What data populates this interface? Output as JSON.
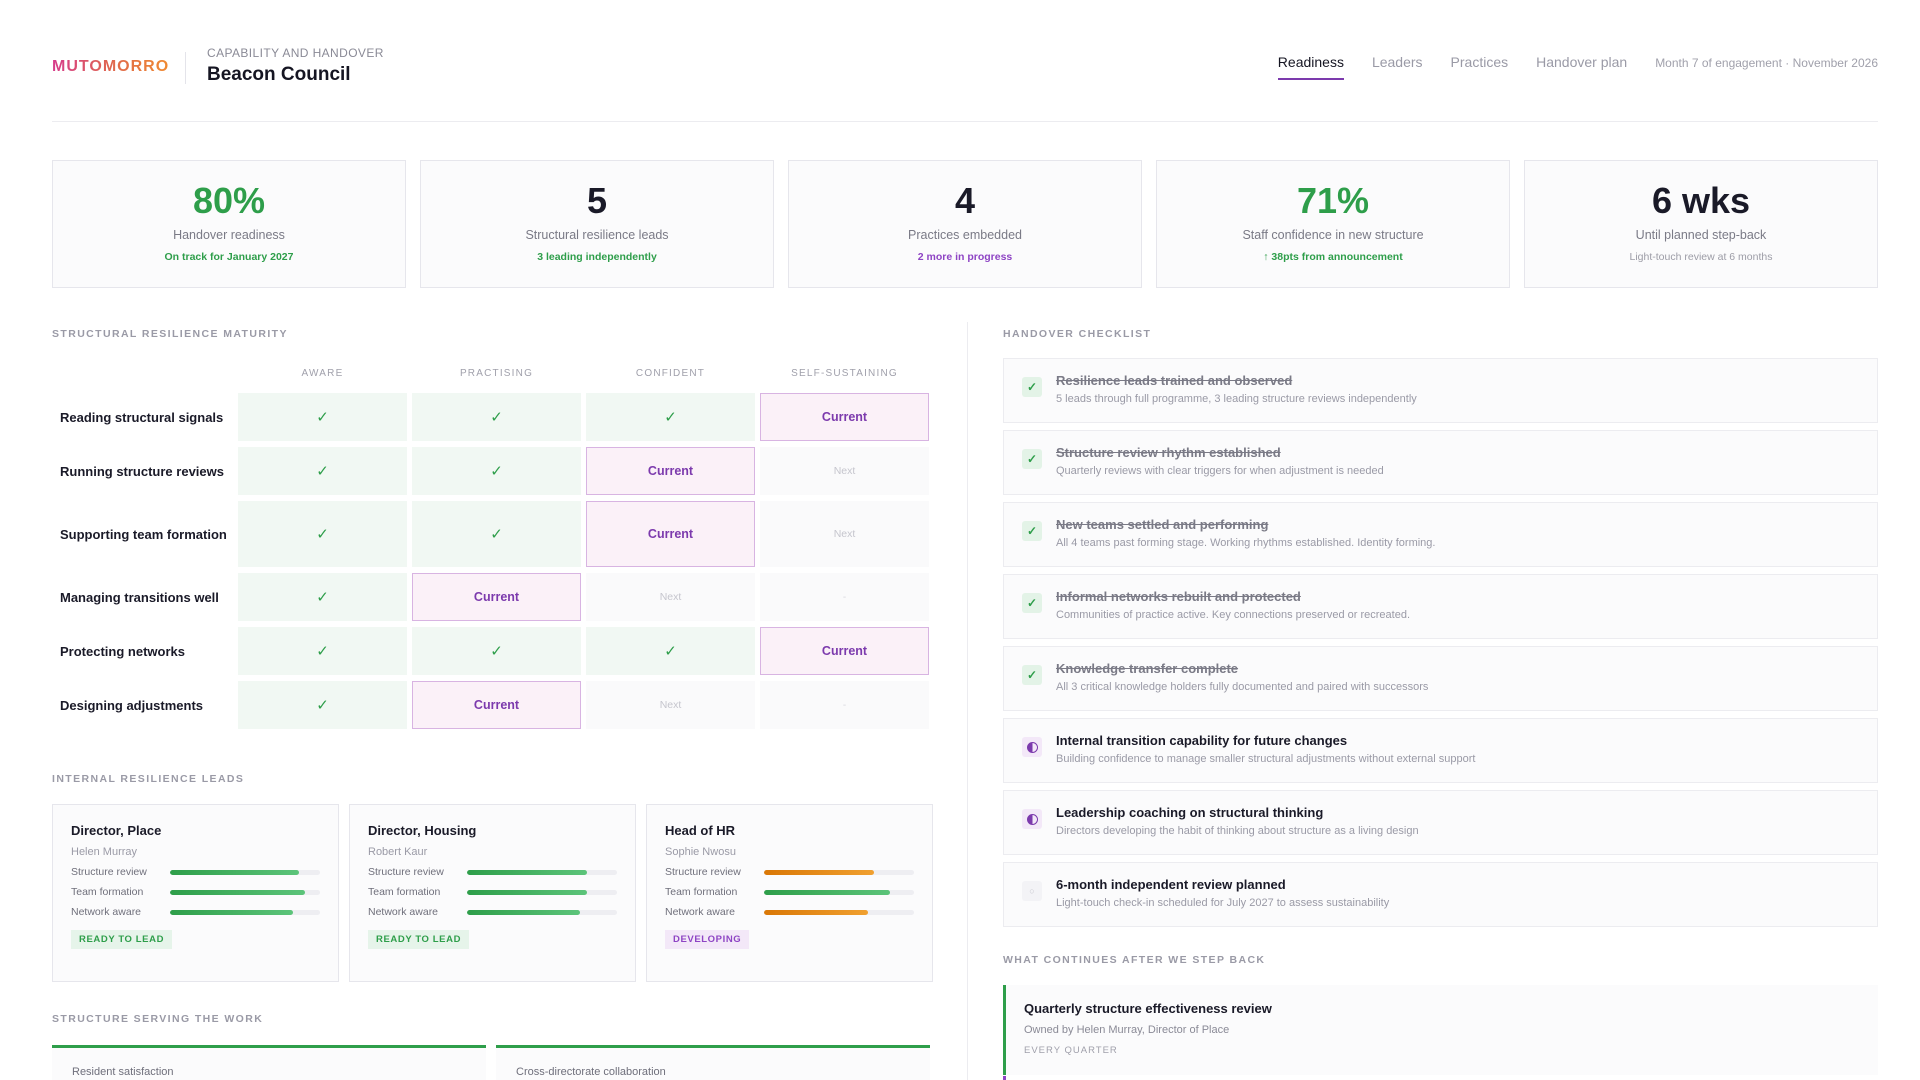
{
  "header": {
    "logo": "MUTOMORRO",
    "breadcrumb": "CAPABILITY AND HANDOVER",
    "title": "Beacon Council",
    "tabs": [
      {
        "label": "Readiness",
        "active": true
      },
      {
        "label": "Leaders",
        "active": false
      },
      {
        "label": "Practices",
        "active": false
      },
      {
        "label": "Handover plan",
        "active": false
      }
    ],
    "meta": "Month 7 of engagement · November 2026"
  },
  "kpis": [
    {
      "value": "80%",
      "label": "Handover readiness",
      "sub": "On track for January 2027",
      "tone": "green"
    },
    {
      "value": "5",
      "label": "Structural resilience leads",
      "sub": "3 leading independently",
      "tone": "green"
    },
    {
      "value": "4",
      "label": "Practices embedded",
      "sub": "2 more in progress",
      "tone": "purple"
    },
    {
      "value": "71%",
      "label": "Staff confidence in new structure",
      "sub": "↑ 38pts from announcement",
      "tone": "green"
    },
    {
      "value": "6 wks",
      "label": "Until planned step-back",
      "sub": "Light-touch review at 6 months",
      "tone": "gray"
    }
  ],
  "maturity": {
    "title": "STRUCTURAL RESILIENCE MATURITY",
    "columns": [
      "AWARE",
      "PRACTISING",
      "CONFIDENT",
      "SELF-SUSTAINING"
    ],
    "check_glyph": "✓",
    "current_label": "Current",
    "next_label": "Next",
    "empty_label": "-",
    "rows": [
      {
        "label": "Reading structural signals",
        "cells": [
          "done",
          "done",
          "done",
          "current"
        ]
      },
      {
        "label": "Running structure reviews",
        "cells": [
          "done",
          "done",
          "current",
          "next"
        ]
      },
      {
        "label": "Supporting team formation",
        "cells": [
          "done",
          "done",
          "current",
          "next"
        ]
      },
      {
        "label": "Managing transitions well",
        "cells": [
          "done",
          "current",
          "next",
          "empty"
        ]
      },
      {
        "label": "Protecting networks",
        "cells": [
          "done",
          "done",
          "done",
          "current"
        ]
      },
      {
        "label": "Designing adjustments",
        "cells": [
          "done",
          "current",
          "next",
          "empty"
        ]
      }
    ]
  },
  "leads": {
    "title": "INTERNAL RESILIENCE LEADS",
    "cards": [
      {
        "role": "Director, Place",
        "name": "Helen Murray",
        "skills": [
          {
            "label": "Structure review",
            "level": 0.86,
            "tone": "green"
          },
          {
            "label": "Team formation",
            "level": 0.9,
            "tone": "green"
          },
          {
            "label": "Network aware",
            "level": 0.82,
            "tone": "green"
          }
        ],
        "badge": "READY TO LEAD",
        "badge_tone": "green"
      },
      {
        "role": "Director, Housing",
        "name": "Robert Kaur",
        "skills": [
          {
            "label": "Structure review",
            "level": 0.8,
            "tone": "green"
          },
          {
            "label": "Team formation",
            "level": 0.8,
            "tone": "green"
          },
          {
            "label": "Network aware",
            "level": 0.75,
            "tone": "green"
          }
        ],
        "badge": "READY TO LEAD",
        "badge_tone": "green"
      },
      {
        "role": "Head of HR",
        "name": "Sophie Nwosu",
        "skills": [
          {
            "label": "Structure review",
            "level": 0.73,
            "tone": "orange"
          },
          {
            "label": "Team formation",
            "level": 0.84,
            "tone": "green"
          },
          {
            "label": "Network aware",
            "level": 0.69,
            "tone": "orange"
          }
        ],
        "badge": "DEVELOPING",
        "badge_tone": "purple"
      }
    ]
  },
  "serving": {
    "title": "STRUCTURE SERVING THE WORK",
    "cards": [
      "Resident satisfaction",
      "Cross-directorate collaboration"
    ]
  },
  "checklist": {
    "title": "HANDOVER CHECKLIST",
    "items": [
      {
        "title": "Resilience leads trained and observed",
        "sub": "5 leads through full programme, 3 leading structure reviews independently",
        "status": "done"
      },
      {
        "title": "Structure review rhythm established",
        "sub": "Quarterly reviews with clear triggers for when adjustment is needed",
        "status": "done"
      },
      {
        "title": "New teams settled and performing",
        "sub": "All 4 teams past forming stage. Working rhythms established. Identity forming.",
        "status": "done"
      },
      {
        "title": "Informal networks rebuilt and protected",
        "sub": "Communities of practice active. Key connections preserved or recreated.",
        "status": "done"
      },
      {
        "title": "Knowledge transfer complete",
        "sub": "All 3 critical knowledge holders fully documented and paired with successors",
        "status": "done"
      },
      {
        "title": "Internal transition capability for future changes",
        "sub": "Building confidence to manage smaller structural adjustments without external support",
        "status": "progress"
      },
      {
        "title": "Leadership coaching on structural thinking",
        "sub": "Directors developing the habit of thinking about structure as a living design",
        "status": "progress"
      },
      {
        "title": "6-month independent review planned",
        "sub": "Light-touch check-in scheduled for July 2027 to assess sustainability",
        "status": "todo"
      }
    ]
  },
  "continues": {
    "title": "WHAT CONTINUES AFTER WE STEP BACK",
    "items": [
      {
        "name": "Quarterly structure effectiveness review",
        "owner": "Owned by Helen Murray, Director of Place",
        "frequency": "EVERY QUARTER"
      }
    ]
  },
  "colors": {
    "brand_gradient": [
      "#d63c8c",
      "#f08a30"
    ],
    "accent_purple": "#7c3aad",
    "success_green": "#2e9e4a",
    "warning_orange": "#d97706"
  }
}
